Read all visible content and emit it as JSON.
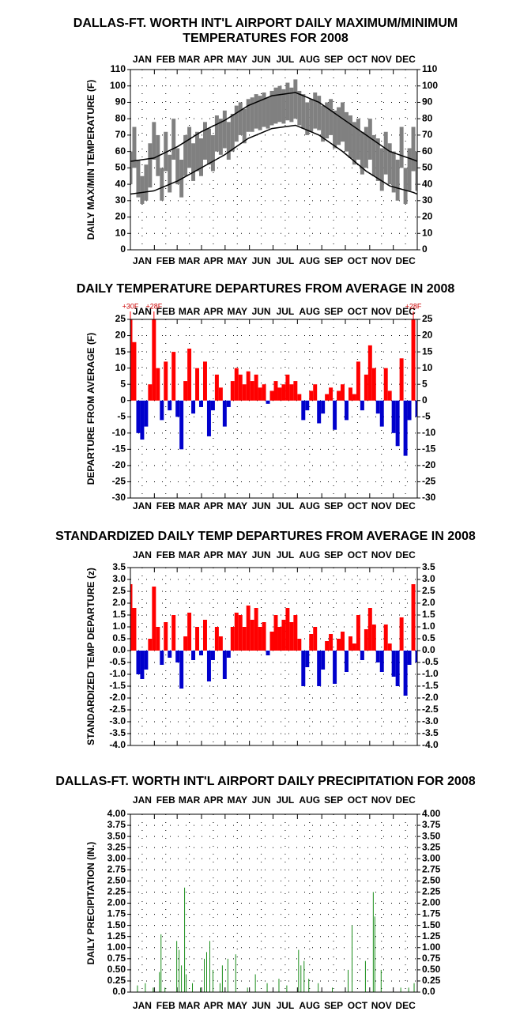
{
  "chart_data": [
    {
      "type": "range",
      "title": [
        "DALLAS-FT. WORTH INT'L AIRPORT DAILY MAXIMUM/MINIMUM",
        "TEMPERATURES FOR 2008"
      ],
      "y_label": "DAILY MAX/MIN TEMPERATURE (F)",
      "months": [
        "JAN",
        "FEB",
        "MAR",
        "APR",
        "MAY",
        "JUN",
        "JUL",
        "AUG",
        "SEP",
        "OCT",
        "NOV",
        "DEC"
      ],
      "xlim": [
        1,
        366
      ],
      "x": [
        1,
        6,
        11,
        16,
        21,
        26,
        31,
        36,
        41,
        46,
        51,
        56,
        61,
        66,
        71,
        76,
        81,
        86,
        91,
        96,
        101,
        106,
        111,
        116,
        121,
        126,
        131,
        136,
        141,
        146,
        151,
        156,
        161,
        166,
        171,
        176,
        181,
        186,
        191,
        196,
        201,
        206,
        211,
        216,
        221,
        226,
        231,
        236,
        241,
        246,
        251,
        256,
        261,
        266,
        271,
        276,
        281,
        286,
        291,
        296,
        301,
        306,
        311,
        316,
        321,
        326,
        331,
        336,
        341,
        346,
        351,
        356,
        361,
        366
      ],
      "series": [
        {
          "color": "#808080",
          "values": [
            60,
            75,
            55,
            45,
            52,
            65,
            78,
            70,
            50,
            72,
            58,
            80,
            62,
            55,
            70,
            75,
            65,
            72,
            68,
            78,
            74,
            70,
            82,
            80,
            85,
            78,
            83,
            88,
            90,
            86,
            92,
            93,
            95,
            94,
            96,
            93,
            97,
            99,
            100,
            98,
            102,
            99,
            104,
            97,
            95,
            90,
            92,
            96,
            94,
            88,
            90,
            92,
            85,
            87,
            90,
            84,
            82,
            78,
            80,
            72,
            75,
            80,
            70,
            68,
            62,
            72,
            65,
            60,
            55,
            75,
            50,
            62,
            75,
            60
          ]
        },
        {
          "color": "#808080",
          "values": [
            40,
            50,
            32,
            28,
            30,
            38,
            55,
            45,
            30,
            48,
            35,
            55,
            40,
            32,
            45,
            50,
            42,
            48,
            45,
            55,
            52,
            48,
            60,
            58,
            62,
            55,
            60,
            66,
            70,
            65,
            72,
            72,
            74,
            73,
            75,
            74,
            76,
            77,
            78,
            77,
            79,
            78,
            80,
            76,
            74,
            70,
            72,
            74,
            73,
            66,
            68,
            70,
            62,
            64,
            66,
            60,
            56,
            52,
            55,
            46,
            50,
            55,
            45,
            42,
            36,
            46,
            40,
            35,
            30,
            50,
            28,
            36,
            48,
            36
          ]
        },
        {
          "color": "#000000",
          "x": [
            1,
            31,
            61,
            91,
            121,
            151,
            181,
            211,
            241,
            271,
            301,
            331,
            361,
            366
          ],
          "values": [
            54,
            56,
            63,
            72,
            79,
            88,
            94,
            96,
            90,
            80,
            70,
            60,
            55,
            54
          ]
        },
        {
          "color": "#000000",
          "x": [
            1,
            31,
            61,
            91,
            121,
            151,
            181,
            211,
            241,
            271,
            301,
            331,
            361,
            366
          ],
          "values": [
            34,
            36,
            42,
            50,
            58,
            68,
            74,
            76,
            70,
            60,
            48,
            39,
            35,
            34
          ]
        }
      ],
      "ylim": [
        0,
        110
      ],
      "yticks": [
        0,
        10,
        20,
        30,
        40,
        50,
        60,
        70,
        80,
        90,
        100,
        110
      ],
      "grid": true
    },
    {
      "type": "bar",
      "title": "DAILY TEMPERATURE DEPARTURES FROM AVERAGE IN 2008",
      "y_label": "DEPARTURE FROM AVERAGE (F)",
      "months": [
        "JAN",
        "FEB",
        "MAR",
        "APR",
        "MAY",
        "JUN",
        "JUL",
        "AUG",
        "SEP",
        "OCT",
        "NOV",
        "DEC"
      ],
      "xlim": [
        1,
        366
      ],
      "x": [
        1,
        6,
        11,
        16,
        21,
        26,
        31,
        36,
        41,
        46,
        51,
        56,
        61,
        66,
        71,
        76,
        81,
        86,
        91,
        96,
        101,
        106,
        111,
        116,
        121,
        126,
        131,
        136,
        141,
        146,
        151,
        156,
        161,
        166,
        171,
        176,
        181,
        186,
        191,
        196,
        201,
        206,
        211,
        216,
        221,
        226,
        231,
        236,
        241,
        246,
        251,
        256,
        261,
        266,
        271,
        276,
        281,
        286,
        291,
        296,
        301,
        306,
        311,
        316,
        321,
        326,
        331,
        336,
        341,
        346,
        351,
        356,
        361,
        366
      ],
      "values": [
        30,
        18,
        -10,
        -12,
        -8,
        5,
        28,
        10,
        -6,
        12,
        -3,
        15,
        -5,
        -15,
        6,
        16,
        -4,
        10,
        -2,
        12,
        -11,
        -3,
        8,
        4,
        -8,
        -2,
        6,
        10,
        8,
        5,
        9,
        6,
        8,
        4,
        5,
        -1,
        3,
        6,
        4,
        5,
        8,
        5,
        6,
        2,
        -6,
        -3,
        3,
        5,
        -7,
        -4,
        2,
        4,
        -9,
        3,
        5,
        -6,
        4,
        2,
        12,
        -3,
        8,
        17,
        10,
        -4,
        -8,
        10,
        3,
        -10,
        -14,
        13,
        -17,
        -6,
        28,
        -5
      ],
      "value_labels": [
        "+30F",
        null,
        null,
        null,
        null,
        null,
        "+28F",
        null,
        null,
        null,
        null,
        null,
        null,
        null,
        null,
        null,
        null,
        null,
        null,
        null,
        null,
        null,
        null,
        null,
        null,
        null,
        null,
        null,
        null,
        null,
        null,
        null,
        null,
        null,
        null,
        null,
        null,
        null,
        null,
        null,
        null,
        null,
        null,
        null,
        null,
        null,
        null,
        null,
        null,
        null,
        null,
        null,
        null,
        null,
        null,
        null,
        null,
        null,
        null,
        null,
        null,
        null,
        null,
        null,
        null,
        null,
        null,
        null,
        null,
        null,
        null,
        null,
        "+28F",
        null
      ],
      "color": "#ff0000",
      "negative_color": "#0000cc",
      "ylim": [
        -30,
        25
      ],
      "yticks": [
        -30,
        -25,
        -20,
        -15,
        -10,
        -5,
        0,
        5,
        10,
        15,
        20,
        25
      ],
      "grid": true
    },
    {
      "type": "bar",
      "title": "STANDARDIZED DAILY TEMP DEPARTURES FROM AVERAGE IN 2008",
      "y_label": "STANDARDIZED TEMP DEPARTURE (z)",
      "months": [
        "JAN",
        "FEB",
        "MAR",
        "APR",
        "MAY",
        "JUN",
        "JUL",
        "AUG",
        "SEP",
        "OCT",
        "NOV",
        "DEC"
      ],
      "xlim": [
        1,
        366
      ],
      "x": [
        1,
        6,
        11,
        16,
        21,
        26,
        31,
        36,
        41,
        46,
        51,
        56,
        61,
        66,
        71,
        76,
        81,
        86,
        91,
        96,
        101,
        106,
        111,
        116,
        121,
        126,
        131,
        136,
        141,
        146,
        151,
        156,
        161,
        166,
        171,
        176,
        181,
        186,
        191,
        196,
        201,
        206,
        211,
        216,
        221,
        226,
        231,
        236,
        241,
        246,
        251,
        256,
        261,
        266,
        271,
        276,
        281,
        286,
        291,
        296,
        301,
        306,
        311,
        316,
        321,
        326,
        331,
        336,
        341,
        346,
        351,
        356,
        361,
        366
      ],
      "values": [
        2.8,
        1.8,
        -1.0,
        -1.2,
        -0.8,
        0.5,
        2.7,
        1.0,
        -0.6,
        1.2,
        -0.3,
        1.5,
        -0.5,
        -1.6,
        0.6,
        1.6,
        -0.4,
        1.0,
        -0.2,
        1.3,
        -1.3,
        -0.4,
        1.0,
        0.6,
        -1.2,
        -0.3,
        1.0,
        1.6,
        1.5,
        1.0,
        1.9,
        1.3,
        1.8,
        1.0,
        1.2,
        -0.2,
        0.8,
        1.5,
        1.0,
        1.3,
        1.8,
        1.2,
        1.5,
        0.5,
        -1.5,
        -0.7,
        0.7,
        1.0,
        -1.5,
        -0.8,
        0.4,
        0.7,
        -1.4,
        0.5,
        0.8,
        -0.9,
        0.6,
        0.3,
        1.5,
        -0.4,
        0.9,
        1.8,
        1.1,
        -0.5,
        -0.9,
        1.1,
        0.3,
        -1.1,
        -1.5,
        1.4,
        -1.9,
        -0.6,
        2.8,
        -0.5
      ],
      "color": "#ff0000",
      "negative_color": "#0000cc",
      "ylim": [
        -4,
        3.5
      ],
      "yticks": [
        {
          "value": -4,
          "label": "-4.0"
        },
        -3.5,
        {
          "value": -3,
          "label": "-3.0"
        },
        -2.5,
        {
          "value": -2,
          "label": "-2.0"
        },
        -1.5,
        {
          "value": -1,
          "label": "-1.0"
        },
        -0.5,
        {
          "value": 0,
          "label": "0.0"
        },
        0.5,
        {
          "value": 1,
          "label": "1.0"
        },
        1.5,
        {
          "value": 2,
          "label": "2.0"
        },
        2.5,
        {
          "value": 3,
          "label": "3.0"
        },
        3.5
      ],
      "grid": true
    },
    {
      "type": "bar",
      "title": "DALLAS-FT. WORTH INT'L AIRPORT DAILY PRECIPITATION FOR 2008",
      "y_label": "DAILY PRECIPITATION (IN.)",
      "months": [
        "JAN",
        "FEB",
        "MAR",
        "APR",
        "MAY",
        "JUN",
        "JUL",
        "AUG",
        "SEP",
        "OCT",
        "NOV",
        "DEC"
      ],
      "xlim": [
        1,
        366
      ],
      "x": [
        10,
        20,
        30,
        38,
        40,
        45,
        60,
        63,
        66,
        70,
        72,
        80,
        90,
        95,
        98,
        102,
        106,
        115,
        118,
        125,
        135,
        150,
        160,
        175,
        190,
        200,
        215,
        218,
        222,
        228,
        240,
        258,
        278,
        283,
        300,
        310,
        312,
        320,
        345,
        355,
        362
      ],
      "values": [
        0.15,
        0.2,
        0.1,
        0.45,
        1.3,
        0.1,
        1.15,
        0.95,
        0.6,
        2.35,
        0.4,
        0.2,
        0.1,
        0.75,
        0.9,
        1.15,
        0.5,
        0.2,
        0.6,
        0.75,
        0.85,
        0.1,
        0.4,
        0.2,
        0.3,
        0.15,
        0.95,
        0.6,
        0.7,
        0.3,
        0.2,
        0.1,
        0.5,
        1.5,
        0.7,
        2.25,
        1.7,
        0.5,
        0.1,
        0.1,
        0.2
      ],
      "color": "#008000",
      "ylim": [
        0,
        4
      ],
      "yticks": [
        {
          "value": 0,
          "label": "0.0"
        },
        0.25,
        {
          "value": 0.5,
          "label": "0.50"
        },
        0.75,
        {
          "value": 1,
          "label": "1.00"
        },
        1.25,
        {
          "value": 1.5,
          "label": "1.50"
        },
        1.75,
        {
          "value": 2,
          "label": "2.00"
        },
        2.25,
        {
          "value": 2.5,
          "label": "2.50"
        },
        2.75,
        {
          "value": 3,
          "label": "3.00"
        },
        3.25,
        {
          "value": 3.5,
          "label": "3.50"
        },
        3.75,
        {
          "value": 4,
          "label": "4.00"
        }
      ],
      "grid": true
    }
  ]
}
